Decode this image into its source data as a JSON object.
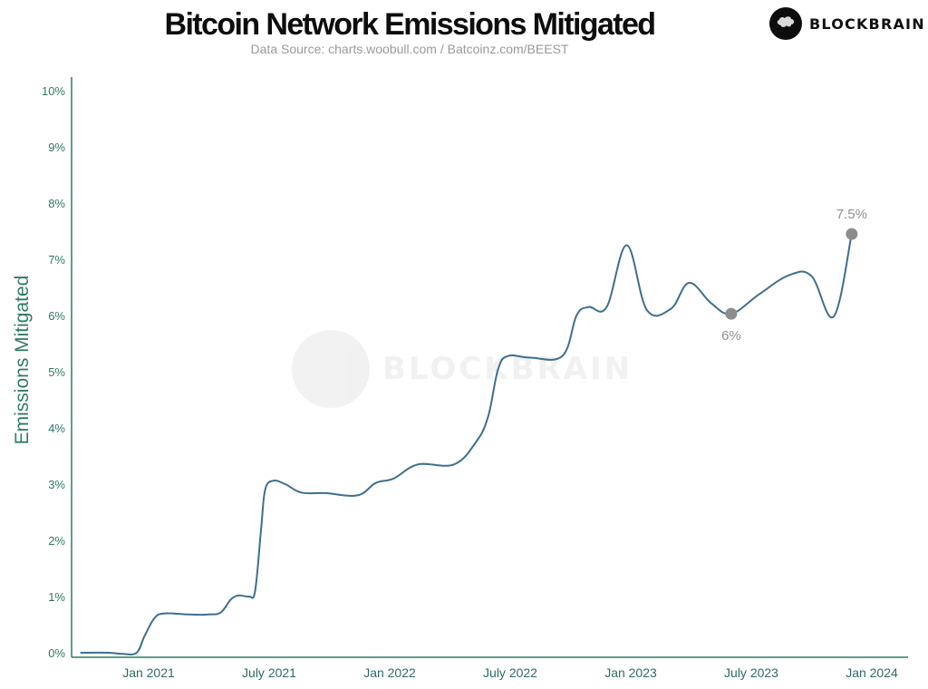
{
  "header": {
    "title": "Bitcoin Network Emissions Mitigated",
    "subtitle": "Data Source: charts.woobull.com / Batcoinz.com/BEEST"
  },
  "brand": {
    "name": "BLOCKBRAIN",
    "icon": "brain-icon"
  },
  "watermark": {
    "text": "BLOCKBRAIN",
    "icon": "brain-icon"
  },
  "colors": {
    "line": "#3e6f8e",
    "axis": "#2e7a67",
    "marker": "#8c8c8c",
    "annotation": "#8f8f8f"
  },
  "chart_data": {
    "type": "line",
    "title": "Bitcoin Network Emissions Mitigated",
    "subtitle": "Data Source: charts.woobull.com / Batcoinz.com/BEEST",
    "xlabel": "",
    "ylabel": "Emissions Mitigated",
    "ylim": [
      0,
      10
    ],
    "yticks": [
      "0%",
      "1%",
      "2%",
      "3%",
      "4%",
      "5%",
      "6%",
      "7%",
      "8%",
      "9%",
      "10%"
    ],
    "xticks": [
      "Jan 2021",
      "July 2021",
      "Jan 2022",
      "July 2022",
      "Jan 2023",
      "July 2023",
      "Jan 2024"
    ],
    "grid": false,
    "legend": null,
    "series": [
      {
        "name": "Emissions Mitigated (%)",
        "points": [
          {
            "month": -3.4,
            "value": 0.0
          },
          {
            "month": -2.0,
            "value": 0.0
          },
          {
            "month": -1.3,
            "value": -0.02
          },
          {
            "month": -0.6,
            "value": 0.0
          },
          {
            "month": -0.2,
            "value": 0.3
          },
          {
            "month": 0.3,
            "value": 0.62
          },
          {
            "month": 0.8,
            "value": 0.7
          },
          {
            "month": 2.0,
            "value": 0.68
          },
          {
            "month": 3.0,
            "value": 0.68
          },
          {
            "month": 3.6,
            "value": 0.72
          },
          {
            "month": 4.1,
            "value": 0.95
          },
          {
            "month": 4.5,
            "value": 1.02
          },
          {
            "month": 5.0,
            "value": 1.0
          },
          {
            "month": 5.3,
            "value": 1.1
          },
          {
            "month": 5.6,
            "value": 2.2
          },
          {
            "month": 5.8,
            "value": 2.9
          },
          {
            "month": 6.2,
            "value": 3.06
          },
          {
            "month": 6.8,
            "value": 3.0
          },
          {
            "month": 7.6,
            "value": 2.85
          },
          {
            "month": 8.8,
            "value": 2.84
          },
          {
            "month": 10.4,
            "value": 2.8
          },
          {
            "month": 11.3,
            "value": 3.02
          },
          {
            "month": 12.2,
            "value": 3.1
          },
          {
            "month": 13.4,
            "value": 3.35
          },
          {
            "month": 15.2,
            "value": 3.35
          },
          {
            "month": 16.3,
            "value": 3.75
          },
          {
            "month": 16.9,
            "value": 4.2
          },
          {
            "month": 17.4,
            "value": 5.05
          },
          {
            "month": 17.9,
            "value": 5.28
          },
          {
            "month": 19.0,
            "value": 5.25
          },
          {
            "month": 20.6,
            "value": 5.28
          },
          {
            "month": 21.3,
            "value": 6.0
          },
          {
            "month": 21.9,
            "value": 6.15
          },
          {
            "month": 22.8,
            "value": 6.15
          },
          {
            "month": 23.8,
            "value": 7.25
          },
          {
            "month": 24.8,
            "value": 6.1
          },
          {
            "month": 26.0,
            "value": 6.12
          },
          {
            "month": 26.9,
            "value": 6.58
          },
          {
            "month": 28.0,
            "value": 6.22
          },
          {
            "month": 29.0,
            "value": 6.03
          },
          {
            "month": 30.4,
            "value": 6.38
          },
          {
            "month": 31.9,
            "value": 6.72
          },
          {
            "month": 33.0,
            "value": 6.7
          },
          {
            "month": 34.1,
            "value": 5.98
          },
          {
            "month": 35.0,
            "value": 7.45
          }
        ]
      }
    ],
    "annotations": [
      {
        "label": "6%",
        "month": 29.0,
        "value": 6.03,
        "position": "below"
      },
      {
        "label": "7.5%",
        "month": 35.0,
        "value": 7.45,
        "position": "above"
      }
    ],
    "x_axis_note": "month = months since Jan 2021"
  }
}
